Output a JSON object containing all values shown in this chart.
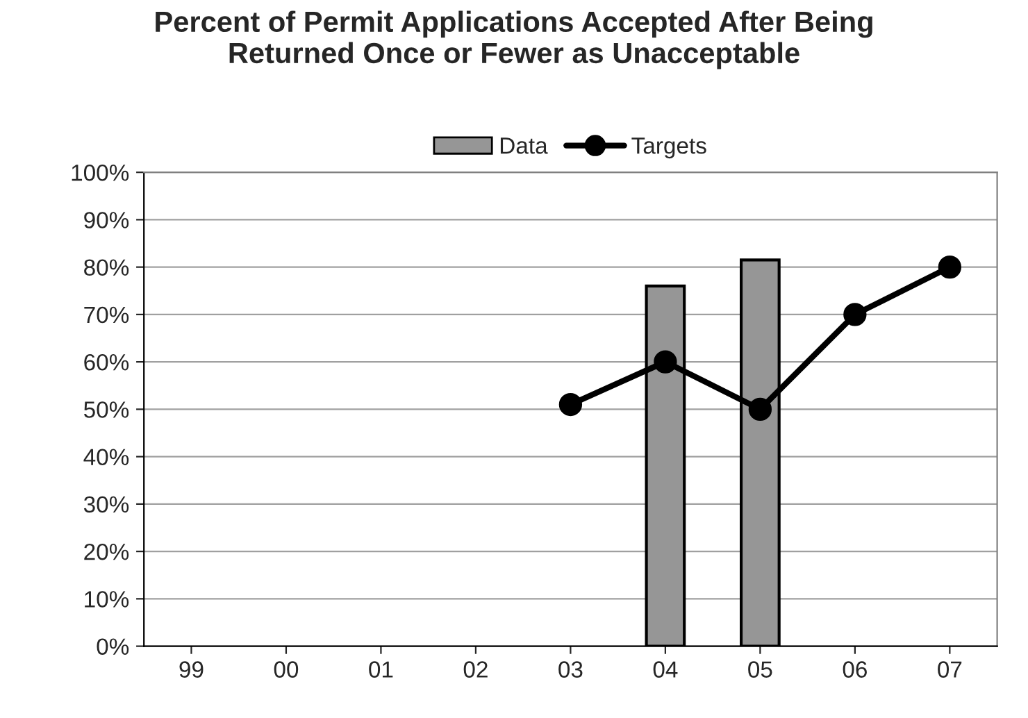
{
  "chart_data": {
    "type": "bar",
    "title": "Percent of Permit Applications Accepted After Being Returned Once or Fewer as Unacceptable",
    "categories": [
      "99",
      "00",
      "01",
      "02",
      "03",
      "04",
      "05",
      "06",
      "07"
    ],
    "series": [
      {
        "name": "Data",
        "color": "#969696",
        "values": [
          null,
          null,
          null,
          null,
          null,
          76,
          81.5,
          null,
          null
        ]
      },
      {
        "name": "Targets",
        "type": "line",
        "color": "#000000",
        "values": [
          null,
          null,
          null,
          null,
          51,
          60,
          50,
          70,
          80
        ]
      }
    ],
    "ylim": [
      0,
      100
    ],
    "yticks": [
      {
        "value": 0,
        "label": "0%"
      },
      {
        "value": 10,
        "label": "10%"
      },
      {
        "value": 20,
        "label": "20%"
      },
      {
        "value": 30,
        "label": "30%"
      },
      {
        "value": 40,
        "label": "40%"
      },
      {
        "value": 50,
        "label": "50%"
      },
      {
        "value": 60,
        "label": "60%"
      },
      {
        "value": 70,
        "label": "70%"
      },
      {
        "value": 80,
        "label": "80%"
      },
      {
        "value": 90,
        "label": "90%"
      },
      {
        "value": 100,
        "label": "100%"
      }
    ],
    "grid": "y",
    "legend": "top",
    "marker": "circle",
    "line_style": "solid"
  }
}
